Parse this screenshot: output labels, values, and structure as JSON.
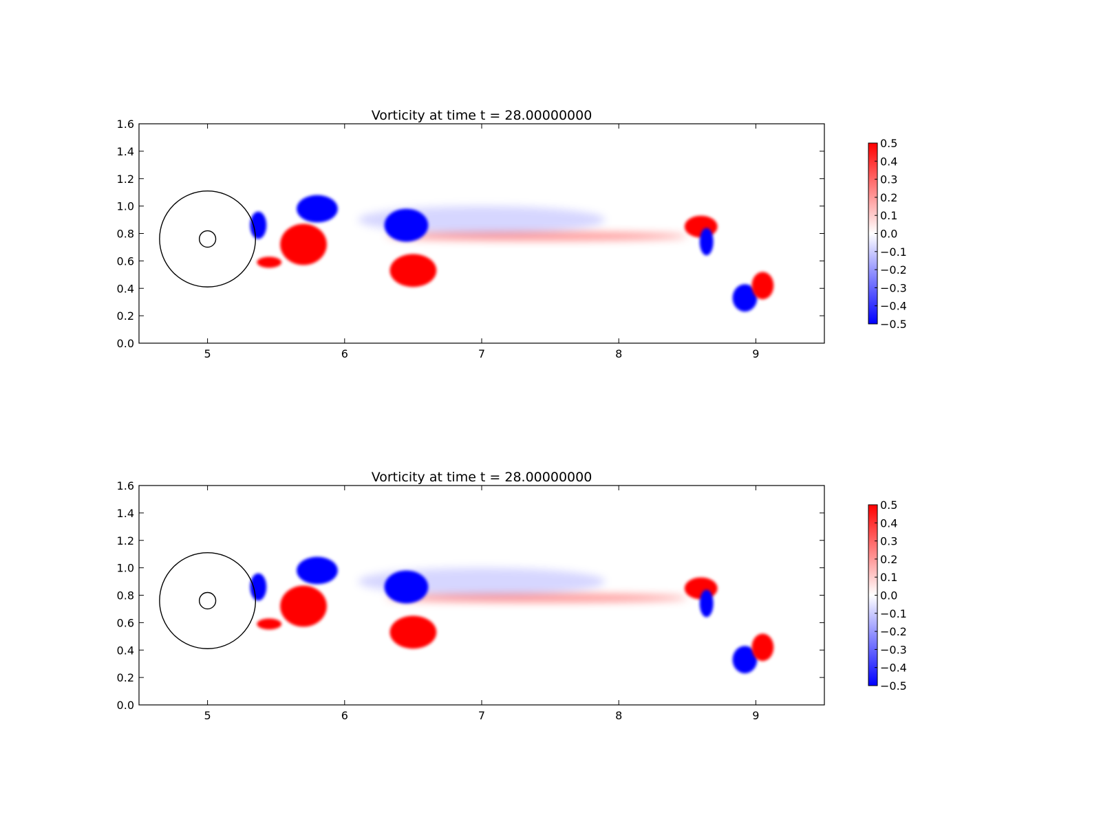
{
  "chart_data": [
    {
      "type": "heatmap",
      "title": "Vorticity at time t =    28.00000000",
      "xlabel": "",
      "ylabel": "",
      "xlim": [
        4.5,
        9.5
      ],
      "ylim": [
        0.0,
        1.6
      ],
      "xticks": [
        5,
        6,
        7,
        8,
        9
      ],
      "xtick_labels": [
        "5",
        "6",
        "7",
        "8",
        "9"
      ],
      "yticks": [
        0.0,
        0.2,
        0.4,
        0.6,
        0.8,
        1.0,
        1.2,
        1.4,
        1.6
      ],
      "ytick_labels": [
        "0.0",
        "0.2",
        "0.4",
        "0.6",
        "0.8",
        "1.0",
        "1.2",
        "1.4",
        "1.6"
      ],
      "grid": false,
      "colormap": "bwr",
      "colors": {
        "negative": "#0000ff",
        "zero": "#ffffff",
        "positive": "#ff0000"
      },
      "colorbar": {
        "range": [
          -0.5,
          0.5
        ],
        "ticks": [
          -0.5,
          -0.4,
          -0.3,
          -0.2,
          -0.1,
          0.0,
          0.1,
          0.2,
          0.3,
          0.4,
          0.5
        ],
        "tick_labels": [
          "−0.5",
          "−0.4",
          "−0.3",
          "−0.2",
          "−0.1",
          "0.0",
          "0.1",
          "0.2",
          "0.3",
          "0.4",
          "0.5"
        ],
        "placement": "right"
      },
      "outlines": [
        {
          "shape": "circle",
          "cx": 5.0,
          "cy": 0.76,
          "r": 0.35
        },
        {
          "shape": "circle",
          "cx": 5.0,
          "cy": 0.76,
          "r": 0.06
        }
      ],
      "vortices": [
        {
          "x": 6.45,
          "y": 0.86,
          "rx": 0.16,
          "ry": 0.12,
          "value": -0.5
        },
        {
          "x": 6.5,
          "y": 0.53,
          "rx": 0.17,
          "ry": 0.12,
          "value": 0.5
        },
        {
          "x": 5.8,
          "y": 0.98,
          "rx": 0.15,
          "ry": 0.1,
          "value": -0.5
        },
        {
          "x": 5.7,
          "y": 0.72,
          "rx": 0.17,
          "ry": 0.15,
          "value": 0.5
        },
        {
          "x": 5.37,
          "y": 0.86,
          "rx": 0.06,
          "ry": 0.1,
          "value": -0.5
        },
        {
          "x": 5.45,
          "y": 0.59,
          "rx": 0.09,
          "ry": 0.04,
          "value": 0.5
        },
        {
          "x": 8.6,
          "y": 0.85,
          "rx": 0.12,
          "ry": 0.08,
          "value": 0.5
        },
        {
          "x": 8.64,
          "y": 0.74,
          "rx": 0.05,
          "ry": 0.1,
          "value": -0.5
        },
        {
          "x": 8.92,
          "y": 0.33,
          "rx": 0.09,
          "ry": 0.1,
          "value": -0.5
        },
        {
          "x": 9.05,
          "y": 0.42,
          "rx": 0.08,
          "ry": 0.1,
          "value": 0.5
        }
      ],
      "shear_layers": [
        {
          "x": 7.4,
          "y": 0.78,
          "rx": 1.1,
          "ry": 0.03,
          "value": 0.22
        },
        {
          "x": 7.0,
          "y": 0.9,
          "rx": 0.9,
          "ry": 0.1,
          "value": -0.08
        }
      ]
    },
    {
      "type": "heatmap",
      "title": "Vorticity at time t =    28.00000000",
      "xlabel": "",
      "ylabel": "",
      "xlim": [
        4.5,
        9.5
      ],
      "ylim": [
        0.0,
        1.6
      ],
      "xticks": [
        5,
        6,
        7,
        8,
        9
      ],
      "xtick_labels": [
        "5",
        "6",
        "7",
        "8",
        "9"
      ],
      "yticks": [
        0.0,
        0.2,
        0.4,
        0.6,
        0.8,
        1.0,
        1.2,
        1.4,
        1.6
      ],
      "ytick_labels": [
        "0.0",
        "0.2",
        "0.4",
        "0.6",
        "0.8",
        "1.0",
        "1.2",
        "1.4",
        "1.6"
      ],
      "grid": false,
      "colormap": "bwr",
      "colors": {
        "negative": "#0000ff",
        "zero": "#ffffff",
        "positive": "#ff0000"
      },
      "colorbar": {
        "range": [
          -0.5,
          0.5
        ],
        "ticks": [
          -0.5,
          -0.4,
          -0.3,
          -0.2,
          -0.1,
          0.0,
          0.1,
          0.2,
          0.3,
          0.4,
          0.5
        ],
        "tick_labels": [
          "−0.5",
          "−0.4",
          "−0.3",
          "−0.2",
          "−0.1",
          "0.0",
          "0.1",
          "0.2",
          "0.3",
          "0.4",
          "0.5"
        ],
        "placement": "right"
      },
      "outlines": [
        {
          "shape": "circle",
          "cx": 5.0,
          "cy": 0.76,
          "r": 0.35
        },
        {
          "shape": "circle",
          "cx": 5.0,
          "cy": 0.76,
          "r": 0.06
        }
      ],
      "vortices": [
        {
          "x": 6.45,
          "y": 0.86,
          "rx": 0.16,
          "ry": 0.12,
          "value": -0.5
        },
        {
          "x": 6.5,
          "y": 0.53,
          "rx": 0.17,
          "ry": 0.12,
          "value": 0.5
        },
        {
          "x": 5.8,
          "y": 0.98,
          "rx": 0.15,
          "ry": 0.1,
          "value": -0.5
        },
        {
          "x": 5.7,
          "y": 0.72,
          "rx": 0.17,
          "ry": 0.15,
          "value": 0.5
        },
        {
          "x": 5.37,
          "y": 0.86,
          "rx": 0.06,
          "ry": 0.1,
          "value": -0.5
        },
        {
          "x": 5.45,
          "y": 0.59,
          "rx": 0.09,
          "ry": 0.04,
          "value": 0.5
        },
        {
          "x": 8.6,
          "y": 0.85,
          "rx": 0.12,
          "ry": 0.08,
          "value": 0.5
        },
        {
          "x": 8.64,
          "y": 0.74,
          "rx": 0.05,
          "ry": 0.1,
          "value": -0.5
        },
        {
          "x": 8.92,
          "y": 0.33,
          "rx": 0.09,
          "ry": 0.1,
          "value": -0.5
        },
        {
          "x": 9.05,
          "y": 0.42,
          "rx": 0.08,
          "ry": 0.1,
          "value": 0.5
        }
      ],
      "shear_layers": [
        {
          "x": 7.4,
          "y": 0.78,
          "rx": 1.1,
          "ry": 0.03,
          "value": 0.22
        },
        {
          "x": 7.0,
          "y": 0.9,
          "rx": 0.9,
          "ry": 0.1,
          "value": -0.08
        }
      ]
    }
  ]
}
